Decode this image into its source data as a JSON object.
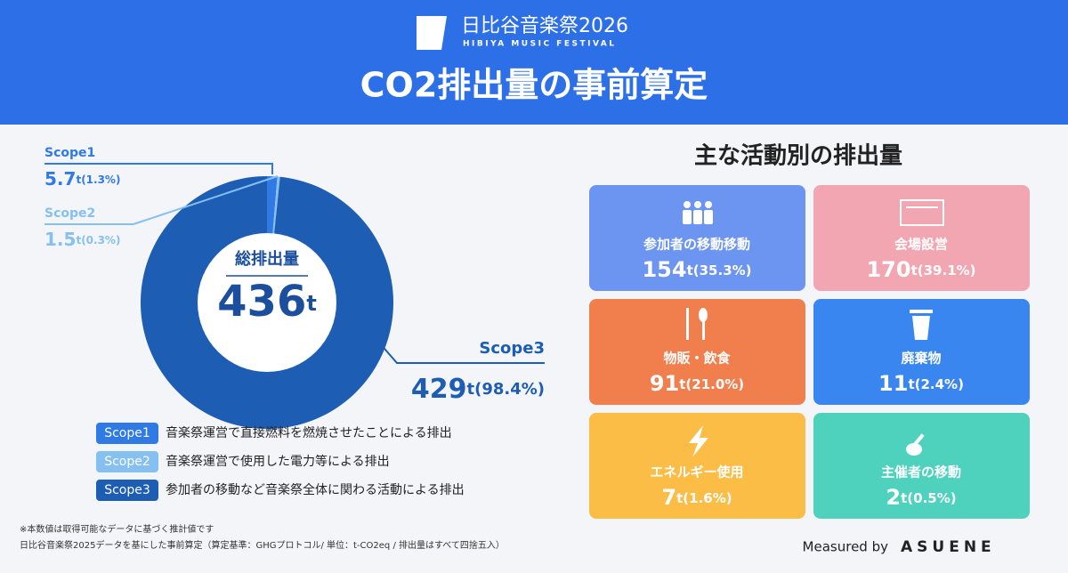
{
  "header": {
    "logo_title": "日比谷音楽祭2026",
    "logo_subtitle": "HIBIYA MUSIC FESTIVAL",
    "title": "CO2排出量の事前算定"
  },
  "chart_data": {
    "type": "donut",
    "center_label": "総排出量",
    "total": 436,
    "unit": "t",
    "categories": [
      "Scope1",
      "Scope2",
      "Scope3"
    ],
    "values": [
      5.7,
      1.5,
      429
    ],
    "share_labels": [
      "(1.3%)",
      "(0.3%)",
      "(98.4%)"
    ],
    "colors": [
      "#2f7ae5",
      "#86c0f0",
      "#1d5db3"
    ],
    "legend_descriptions": [
      "音楽祭運営で直接燃料を燃焼させたことによる排出",
      "音楽祭運営で使用した電力等による排出",
      "参加者の移動など音楽祭全体に関わる活動による排出"
    ]
  },
  "activities": {
    "title": "主な活動別の排出量",
    "cards": [
      {
        "name": "参加者の移動移動",
        "value": 154,
        "share_label": "(35.3%)",
        "color": "#6c94f1"
      },
      {
        "name": "会場設営",
        "value": 170,
        "share_label": "(39.1%)",
        "color": "#f2a6b2"
      },
      {
        "name": "物販・飲食",
        "value": 91,
        "share_label": "(21.0%)",
        "color": "#f07f4d"
      },
      {
        "name": "廃棄物",
        "value": 11,
        "share_label": "(2.4%)",
        "color": "#3a86f1"
      },
      {
        "name": "エネルギー使用",
        "value": 7,
        "share_label": "(1.6%)",
        "color": "#fbbd45"
      },
      {
        "name": "主催者の移動",
        "value": 2,
        "share_label": "(0.5%)",
        "color": "#4fd2bd"
      }
    ]
  },
  "notes": [
    "※本数値は取得可能なデータに基づく推計値です",
    "日比谷音楽祭2025データを基にした事前算定（算定基準：GHGプロトコル/ 単位：t-CO2eq / 排出量はすべて四捨五入）"
  ],
  "footer": {
    "measured_by": "Measured by",
    "brand": "ASUENE"
  }
}
